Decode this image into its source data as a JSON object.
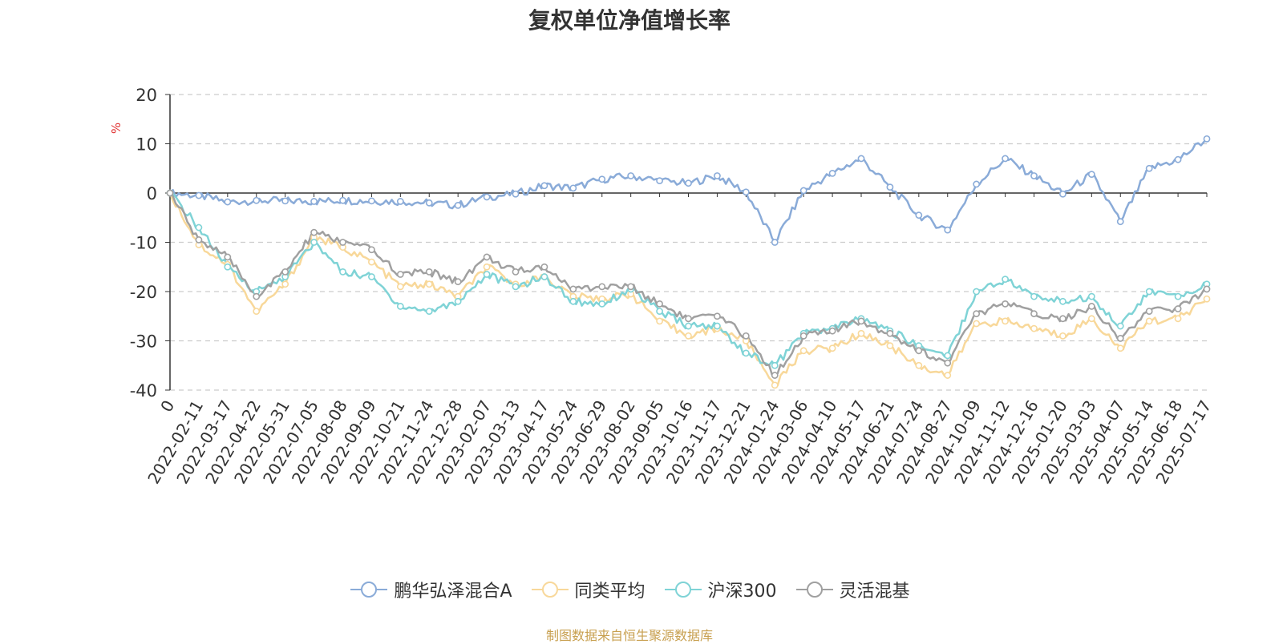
{
  "chart_data": {
    "type": "line",
    "title": "复权单位净值增长率",
    "ylabel": "%",
    "ylim": [
      -40,
      20
    ],
    "yticks": [
      20,
      10,
      0,
      -10,
      -20,
      -30,
      -40
    ],
    "xticklabels": [
      "0",
      "2022-02-11",
      "2022-03-17",
      "2022-04-22",
      "2022-05-31",
      "2022-07-05",
      "2022-08-08",
      "2022-09-09",
      "2022-10-21",
      "2022-11-24",
      "2022-12-28",
      "2023-02-07",
      "2023-03-13",
      "2023-04-17",
      "2023-05-24",
      "2023-06-29",
      "2023-08-02",
      "2023-09-05",
      "2023-10-16",
      "2023-11-17",
      "2023-12-21",
      "2024-01-24",
      "2024-03-06",
      "2024-04-10",
      "2024-05-17",
      "2024-06-21",
      "2024-07-24",
      "2024-08-27",
      "2024-10-09",
      "2024-11-12",
      "2024-12-16",
      "2025-01-20",
      "2025-03-03",
      "2025-04-07",
      "2025-05-14",
      "2025-06-18",
      "2025-07-17"
    ],
    "grid": "horizontal dashed",
    "legend_position": "bottom",
    "series": [
      {
        "name": "鹏华弘泽混合A",
        "color": "#8aabd8",
        "values": [
          0,
          -0.5,
          -1.8,
          -1.5,
          -1.6,
          -1.7,
          -1.5,
          -1.6,
          -1.7,
          -2.0,
          -2.5,
          -0.8,
          -0.2,
          1.5,
          1.0,
          2.8,
          3.5,
          2.5,
          2.0,
          3.5,
          0.2,
          -10.0,
          0.5,
          4.0,
          7.0,
          1.2,
          -4.5,
          -7.5,
          1.8,
          7.0,
          3.5,
          -0.2,
          3.8,
          -5.8,
          5.0,
          6.8,
          11.0
        ]
      },
      {
        "name": "同类平均",
        "color": "#f8d89a",
        "values": [
          0,
          -10.5,
          -14.5,
          -24.0,
          -18.5,
          -9.0,
          -11.0,
          -14.0,
          -19.0,
          -18.5,
          -21.0,
          -15.0,
          -18.5,
          -17.0,
          -21.0,
          -21.5,
          -20.5,
          -26.0,
          -29.0,
          -27.5,
          -30.0,
          -39.0,
          -32.0,
          -31.5,
          -28.5,
          -31.0,
          -35.0,
          -37.0,
          -26.5,
          -26.0,
          -27.5,
          -29.0,
          -25.5,
          -31.5,
          -26.0,
          -25.5,
          -21.5
        ]
      },
      {
        "name": "沪深300",
        "color": "#7fd3d6",
        "values": [
          0,
          -7.0,
          -15.0,
          -20.0,
          -17.0,
          -10.0,
          -16.0,
          -17.0,
          -23.0,
          -24.0,
          -22.0,
          -16.5,
          -19.0,
          -17.0,
          -22.0,
          -22.5,
          -19.5,
          -24.0,
          -27.0,
          -27.0,
          -32.5,
          -35.0,
          -28.5,
          -27.5,
          -25.5,
          -28.0,
          -31.0,
          -33.0,
          -20.0,
          -17.5,
          -21.0,
          -22.0,
          -21.0,
          -27.0,
          -20.0,
          -21.0,
          -18.5
        ]
      },
      {
        "name": "灵活混基",
        "color": "#a0a0a0",
        "values": [
          0,
          -9.5,
          -13.0,
          -21.0,
          -16.0,
          -8.0,
          -10.0,
          -11.5,
          -16.5,
          -16.0,
          -18.0,
          -13.0,
          -16.0,
          -15.0,
          -19.5,
          -19.0,
          -19.0,
          -22.5,
          -25.5,
          -25.0,
          -29.0,
          -37.0,
          -29.0,
          -28.0,
          -26.0,
          -28.5,
          -32.0,
          -34.5,
          -24.5,
          -22.5,
          -24.5,
          -25.5,
          -23.0,
          -29.5,
          -24.0,
          -23.5,
          -19.5
        ]
      }
    ]
  },
  "source_note": "制图数据来自恒生聚源数据库"
}
